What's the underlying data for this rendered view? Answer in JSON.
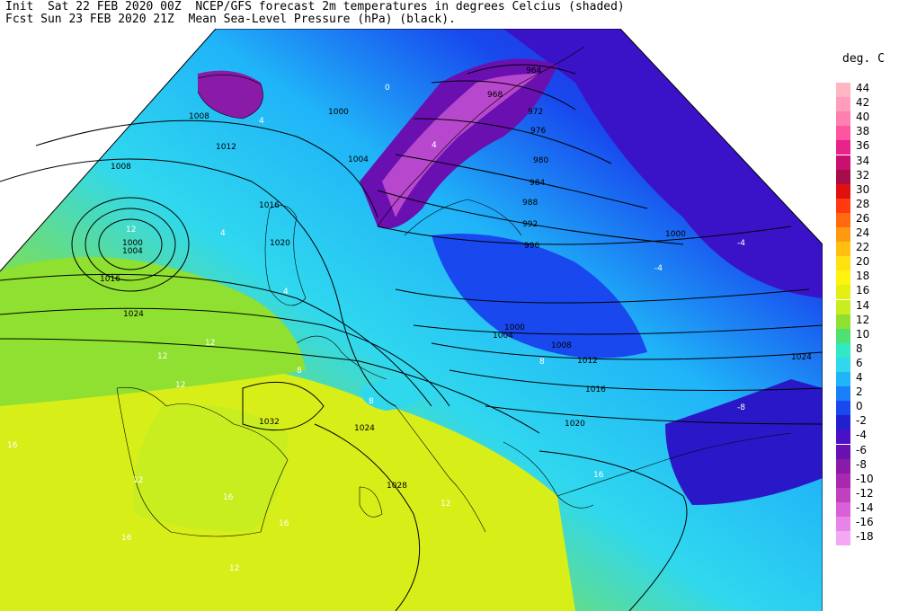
{
  "header": {
    "line1": "Init  Sat 22 FEB 2020 00Z  NCEP/GFS forecast 2m temperatures in degrees Celcius (shaded)",
    "line2": "Fcst Sun 23 FEB 2020 21Z  Mean Sea-Level Pressure (hPa) (black)."
  },
  "legend": {
    "title": "deg. C",
    "entries": [
      {
        "label": "44",
        "color": "#ffb6c1"
      },
      {
        "label": "42",
        "color": "#ff9dbb"
      },
      {
        "label": "40",
        "color": "#ff7fb0"
      },
      {
        "label": "38",
        "color": "#ff55a0"
      },
      {
        "label": "36",
        "color": "#e8228a"
      },
      {
        "label": "34",
        "color": "#c8106e"
      },
      {
        "label": "32",
        "color": "#a60d4a"
      },
      {
        "label": "30",
        "color": "#e01010"
      },
      {
        "label": "28",
        "color": "#ff3a10"
      },
      {
        "label": "26",
        "color": "#ff6a10"
      },
      {
        "label": "24",
        "color": "#ff9a10"
      },
      {
        "label": "22",
        "color": "#ffbf10"
      },
      {
        "label": "20",
        "color": "#ffe010"
      },
      {
        "label": "18",
        "color": "#fff410"
      },
      {
        "label": "16",
        "color": "#e6f010"
      },
      {
        "label": "14",
        "color": "#c8ee20"
      },
      {
        "label": "12",
        "color": "#8fe030"
      },
      {
        "label": "10",
        "color": "#4ee070"
      },
      {
        "label": "8",
        "color": "#30eac4"
      },
      {
        "label": "6",
        "color": "#30d8ee"
      },
      {
        "label": "4",
        "color": "#20b4f8"
      },
      {
        "label": "2",
        "color": "#1a7ef8"
      },
      {
        "label": "0",
        "color": "#1848ee"
      },
      {
        "label": "-2",
        "color": "#2020d0"
      },
      {
        "label": "-4",
        "color": "#4a10c8"
      },
      {
        "label": "-6",
        "color": "#6a10b0"
      },
      {
        "label": "-8",
        "color": "#8a1aa8"
      },
      {
        "label": "-10",
        "color": "#a828b0"
      },
      {
        "label": "-12",
        "color": "#c040c0"
      },
      {
        "label": "-14",
        "color": "#d860d8"
      },
      {
        "label": "-16",
        "color": "#e884e8"
      },
      {
        "label": "-18",
        "color": "#f4a8f4"
      }
    ]
  },
  "isobars": [
    "1008",
    "1000",
    "1012",
    "1008",
    "1000",
    "1004",
    "1016",
    "1024",
    "1020",
    "1016",
    "1004",
    "964",
    "968",
    "972",
    "976",
    "980",
    "984",
    "988",
    "992",
    "996",
    "1000",
    "1000",
    "1004",
    "1008",
    "1012",
    "1016",
    "1020",
    "1032",
    "1024",
    "1028",
    "1024"
  ],
  "temperature_labels": [
    "12",
    "4",
    "0",
    "4",
    "4",
    "12",
    "12",
    "16",
    "16",
    "12",
    "8",
    "4",
    "-4",
    "-4",
    "-8",
    "8",
    "12",
    "16",
    "8",
    "12",
    "16",
    "16",
    "12"
  ],
  "colors": {
    "land_cold": "#4a10c8",
    "sea_cool": "#30d8ee",
    "sea_mild": "#4ee070",
    "warm": "#e6f010",
    "isobar": "#000000"
  }
}
